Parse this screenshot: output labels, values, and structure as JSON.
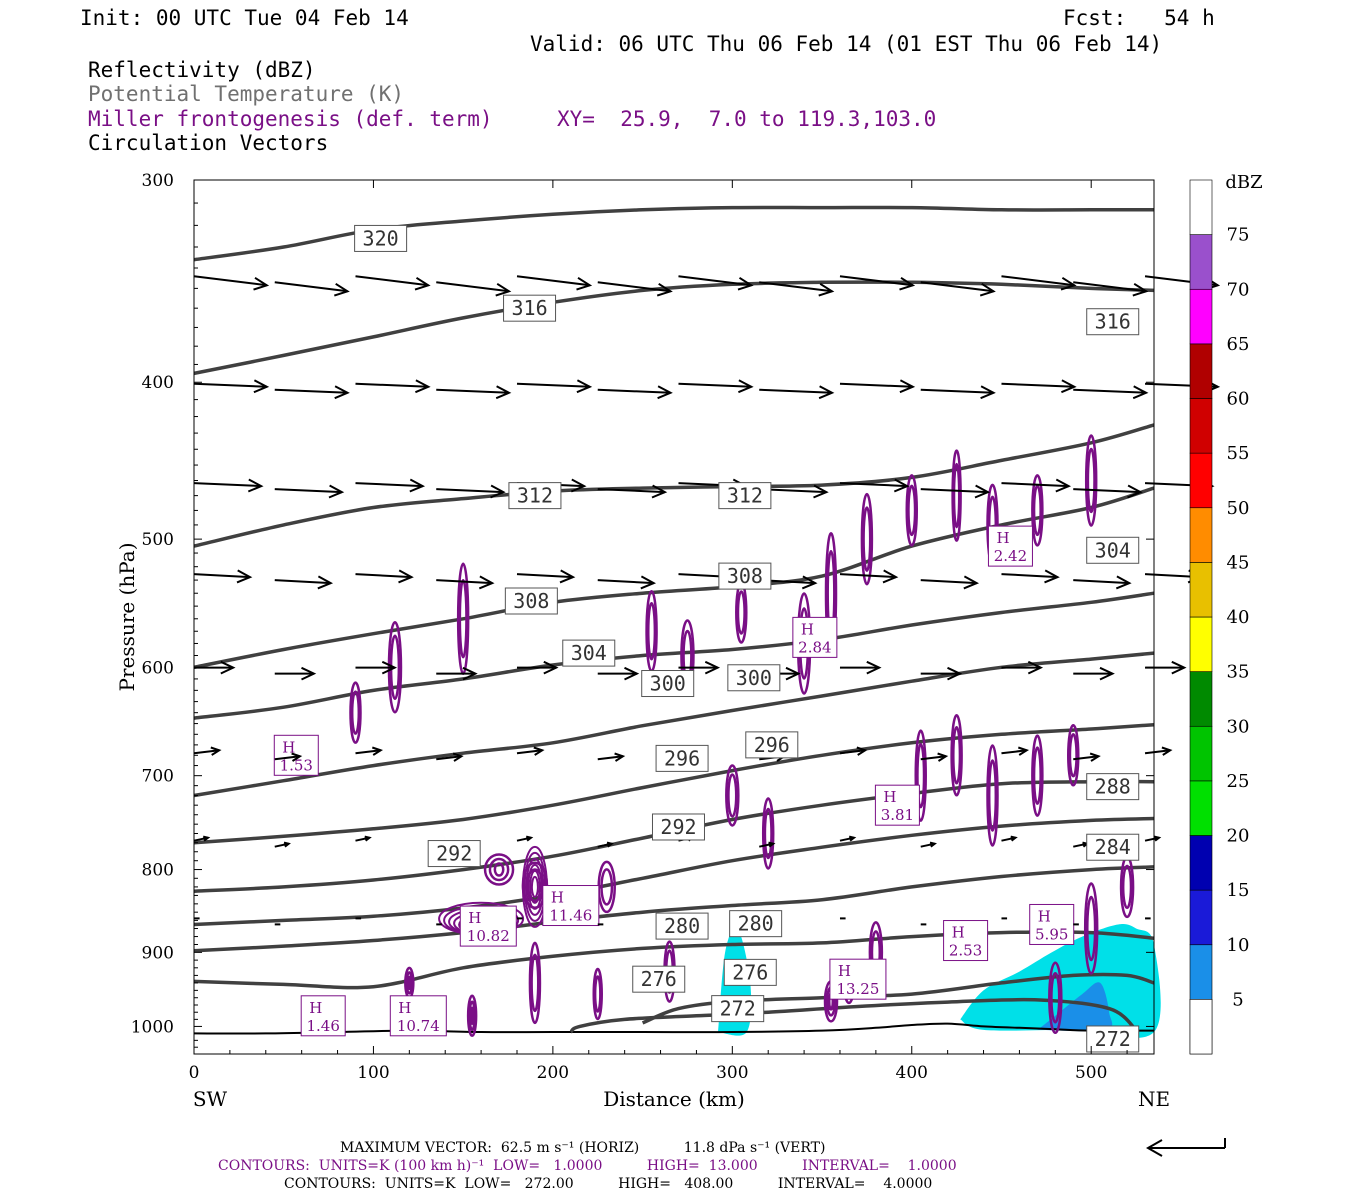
{
  "header": {
    "init": "Init: 00 UTC Tue 04 Feb 14",
    "fcst": "Fcst:   54 h",
    "valid": "Valid: 06 UTC Thu 06 Feb 14 (01 EST Thu 06 Feb 14)",
    "field1": "Reflectivity (dBZ)",
    "field2": "Potential Temperature (K)",
    "field3": "Miller frontogenesis (def. term)",
    "xy": "XY=  25.9,  7.0 to 119.3,103.0",
    "field4": "Circulation Vectors"
  },
  "footer": {
    "max_vector": "MAXIMUM VECTOR:  62.5 m s⁻¹ (HORIZ)          11.8 dPa s⁻¹ (VERT)",
    "contours1": "CONTOURS:  UNITS=K (100 km h)⁻¹  LOW=   1.0000          HIGH=  13.000          INTERVAL=    1.0000",
    "contours2": "CONTOURS:  UNITS=K  LOW=   272.00          HIGH=   408.00          INTERVAL=    4.0000"
  },
  "colors": {
    "theta": "#404040",
    "frontogenesis": "#7a0f86",
    "vector": "#000000"
  },
  "chart_data": {
    "type": "cross-section",
    "xlabel": "Distance (km)",
    "ylabel": "Pressure (hPa)",
    "xlim": [
      0,
      535
    ],
    "ylim": [
      1040,
      300
    ],
    "y_scale": "log",
    "grid": false,
    "x_ticks": [
      0,
      100,
      200,
      300,
      400,
      500
    ],
    "y_ticks": [
      300,
      400,
      500,
      600,
      700,
      800,
      900,
      1000
    ],
    "x_end_labels": [
      "SW",
      "NE"
    ],
    "colorbar": {
      "title": "dBZ",
      "levels": [
        5,
        10,
        15,
        20,
        25,
        30,
        35,
        40,
        45,
        50,
        55,
        60,
        65,
        70,
        75
      ],
      "colors": [
        "#00e0e8",
        "#1a8fe8",
        "#1a1ad8",
        "#0000b0",
        "#00e000",
        "#00c400",
        "#008a00",
        "#ffff00",
        "#e8c000",
        "#ff8c00",
        "#ff0000",
        "#d00000",
        "#b00000",
        "#ff00ff",
        "#9a50cc",
        "#ffffff"
      ]
    },
    "reflectivity_areas": [
      {
        "level": 5,
        "points": [
          [
            292,
            1008
          ],
          [
            296,
            900
          ],
          [
            303,
            870
          ],
          [
            310,
            940
          ],
          [
            308,
            1008
          ]
        ]
      },
      {
        "level": 5,
        "points": [
          [
            427,
            990
          ],
          [
            440,
            950
          ],
          [
            460,
            925
          ],
          [
            478,
            900
          ],
          [
            495,
            880
          ],
          [
            515,
            865
          ],
          [
            525,
            870
          ],
          [
            535,
            890
          ],
          [
            535,
            1008
          ],
          [
            490,
            1005
          ],
          [
            440,
            1005
          ]
        ]
      },
      {
        "level": 10,
        "points": [
          [
            470,
            1005
          ],
          [
            480,
            985
          ],
          [
            495,
            955
          ],
          [
            505,
            940
          ],
          [
            510,
            980
          ],
          [
            508,
            1005
          ]
        ]
      }
    ],
    "theta_contours": [
      {
        "value": 320,
        "points": [
          [
            0,
            336
          ],
          [
            50,
            330
          ],
          [
            100,
            322
          ],
          [
            150,
            318
          ],
          [
            200,
            315
          ],
          [
            250,
            313
          ],
          [
            300,
            312
          ],
          [
            350,
            312
          ],
          [
            400,
            312
          ],
          [
            450,
            313
          ],
          [
            500,
            313
          ],
          [
            535,
            313
          ]
        ],
        "labels": [
          [
            104,
            326
          ]
        ]
      },
      {
        "value": 316,
        "points": [
          [
            0,
            395
          ],
          [
            50,
            385
          ],
          [
            100,
            375
          ],
          [
            150,
            365
          ],
          [
            200,
            357
          ],
          [
            250,
            351
          ],
          [
            300,
            348
          ],
          [
            350,
            347
          ],
          [
            400,
            347
          ],
          [
            450,
            348
          ],
          [
            500,
            350
          ],
          [
            535,
            351
          ]
        ],
        "labels": [
          [
            187,
            360
          ],
          [
            512,
            367
          ]
        ]
      },
      {
        "value": 312,
        "points": [
          [
            0,
            505
          ],
          [
            50,
            490
          ],
          [
            100,
            478
          ],
          [
            150,
            472
          ],
          [
            200,
            467
          ],
          [
            250,
            465
          ],
          [
            300,
            464
          ],
          [
            350,
            463
          ],
          [
            400,
            458
          ],
          [
            450,
            447
          ],
          [
            500,
            436
          ],
          [
            535,
            425
          ]
        ],
        "labels": [
          [
            190,
            470
          ],
          [
            307,
            470
          ]
        ]
      },
      {
        "value": 308,
        "points": [
          [
            0,
            600
          ],
          [
            50,
            585
          ],
          [
            100,
            572
          ],
          [
            150,
            560
          ],
          [
            200,
            547
          ],
          [
            250,
            540
          ],
          [
            300,
            535
          ],
          [
            350,
            527
          ],
          [
            400,
            505
          ],
          [
            450,
            490
          ],
          [
            500,
            478
          ],
          [
            535,
            465
          ]
        ],
        "labels": [
          [
            188,
            546
          ],
          [
            307,
            527
          ]
        ]
      },
      {
        "value": 304,
        "points": [
          [
            0,
            645
          ],
          [
            50,
            635
          ],
          [
            100,
            620
          ],
          [
            150,
            610
          ],
          [
            200,
            598
          ],
          [
            250,
            590
          ],
          [
            300,
            585
          ],
          [
            350,
            577
          ],
          [
            400,
            565
          ],
          [
            450,
            555
          ],
          [
            500,
            547
          ],
          [
            535,
            540
          ]
        ],
        "labels": [
          [
            220,
            588
          ],
          [
            512,
            508
          ]
        ]
      },
      {
        "value": 300,
        "points": [
          [
            0,
            720
          ],
          [
            50,
            705
          ],
          [
            100,
            690
          ],
          [
            150,
            678
          ],
          [
            200,
            668
          ],
          [
            250,
            652
          ],
          [
            300,
            638
          ],
          [
            350,
            625
          ],
          [
            400,
            612
          ],
          [
            450,
            600
          ],
          [
            500,
            593
          ],
          [
            535,
            588
          ]
        ],
        "labels": [
          [
            264,
            614
          ],
          [
            312,
            609
          ]
        ]
      },
      {
        "value": 296,
        "points": [
          [
            0,
            770
          ],
          [
            50,
            763
          ],
          [
            100,
            755
          ],
          [
            150,
            745
          ],
          [
            200,
            730
          ],
          [
            250,
            712
          ],
          [
            300,
            695
          ],
          [
            350,
            680
          ],
          [
            400,
            668
          ],
          [
            450,
            660
          ],
          [
            500,
            655
          ],
          [
            535,
            651
          ]
        ],
        "labels": [
          [
            272,
            683
          ],
          [
            322,
            670
          ]
        ]
      },
      {
        "value": 292,
        "points": [
          [
            0,
            825
          ],
          [
            50,
            820
          ],
          [
            100,
            812
          ],
          [
            150,
            800
          ],
          [
            200,
            785
          ],
          [
            250,
            765
          ],
          [
            300,
            745
          ],
          [
            350,
            730
          ],
          [
            400,
            718
          ],
          [
            450,
            708
          ],
          [
            500,
            706
          ],
          [
            535,
            706
          ]
        ],
        "labels": [
          [
            145,
            782
          ],
          [
            270,
            753
          ]
        ]
      },
      {
        "value": 288,
        "points": [
          [
            0,
            865
          ],
          [
            50,
            860
          ],
          [
            100,
            855
          ],
          [
            150,
            845
          ],
          [
            200,
            830
          ],
          [
            250,
            810
          ],
          [
            300,
            790
          ],
          [
            350,
            775
          ],
          [
            400,
            762
          ],
          [
            450,
            752
          ],
          [
            500,
            746
          ],
          [
            535,
            744
          ]
        ],
        "labels": [
          [
            512,
            711
          ]
        ]
      },
      {
        "value": 284,
        "points": [
          [
            0,
            898
          ],
          [
            50,
            892
          ],
          [
            100,
            885
          ],
          [
            150,
            875
          ],
          [
            200,
            862
          ],
          [
            250,
            850
          ],
          [
            300,
            842
          ],
          [
            350,
            835
          ],
          [
            400,
            820
          ],
          [
            450,
            808
          ],
          [
            500,
            800
          ],
          [
            535,
            797
          ]
        ],
        "labels": [
          [
            512,
            775
          ]
        ]
      },
      {
        "value": 280,
        "points": [
          [
            0,
            938
          ],
          [
            50,
            942
          ],
          [
            100,
            945
          ],
          [
            150,
            920
          ],
          [
            200,
            905
          ],
          [
            250,
            895
          ],
          [
            300,
            890
          ],
          [
            350,
            888
          ],
          [
            400,
            880
          ],
          [
            450,
            875
          ],
          [
            500,
            875
          ],
          [
            535,
            882
          ]
        ],
        "labels": [
          [
            272,
            867
          ],
          [
            313,
            864
          ]
        ]
      },
      {
        "value": 276,
        "points": [
          [
            250,
            995
          ],
          [
            270,
            975
          ],
          [
            300,
            965
          ],
          [
            350,
            960
          ],
          [
            400,
            955
          ],
          [
            450,
            940
          ],
          [
            490,
            930
          ],
          [
            520,
            930
          ],
          [
            535,
            940
          ]
        ],
        "labels": [
          [
            259,
            935
          ],
          [
            310,
            926
          ]
        ]
      },
      {
        "value": 272,
        "points": [
          [
            210,
            1008
          ],
          [
            215,
            1000
          ],
          [
            240,
            990
          ],
          [
            280,
            985
          ],
          [
            320,
            980
          ],
          [
            370,
            972
          ],
          [
            420,
            966
          ],
          [
            470,
            963
          ],
          [
            510,
            975
          ],
          [
            525,
            1005
          ]
        ],
        "labels": [
          [
            303,
            975
          ],
          [
            512,
            1018
          ]
        ]
      }
    ],
    "frontogenesis_maxima": [
      {
        "label": "H",
        "value": "1.53",
        "x": 57,
        "p": 680
      },
      {
        "label": "H",
        "value": "1.46",
        "x": 72,
        "p": 985
      },
      {
        "label": "H",
        "value": "10.74",
        "x": 125,
        "p": 985
      },
      {
        "label": "H",
        "value": "10.82",
        "x": 164,
        "p": 867
      },
      {
        "label": "H",
        "value": "11.46",
        "x": 210,
        "p": 842
      },
      {
        "label": "H",
        "value": "2.84",
        "x": 346,
        "p": 575
      },
      {
        "label": "H",
        "value": "3.81",
        "x": 392,
        "p": 730
      },
      {
        "label": "H",
        "value": "13.25",
        "x": 370,
        "p": 935
      },
      {
        "label": "H",
        "value": "2.42",
        "x": 455,
        "p": 505
      },
      {
        "label": "H",
        "value": "2.53",
        "x": 430,
        "p": 885
      },
      {
        "label": "H",
        "value": "5.95",
        "x": 478,
        "p": 865
      }
    ],
    "vector_rows": [
      {
        "p": 345,
        "dx": 26,
        "dy": 3
      },
      {
        "p": 402,
        "dx": 26,
        "dy": 1
      },
      {
        "p": 463,
        "dx": 24,
        "dy": 1
      },
      {
        "p": 527,
        "dx": 20,
        "dy": 1
      },
      {
        "p": 602,
        "dx": 14,
        "dy": 0
      },
      {
        "p": 680,
        "dx": 9,
        "dy": -1
      },
      {
        "p": 770,
        "dx": 5,
        "dy": -1
      },
      {
        "p": 860,
        "dx": 2,
        "dy": 0
      }
    ]
  }
}
